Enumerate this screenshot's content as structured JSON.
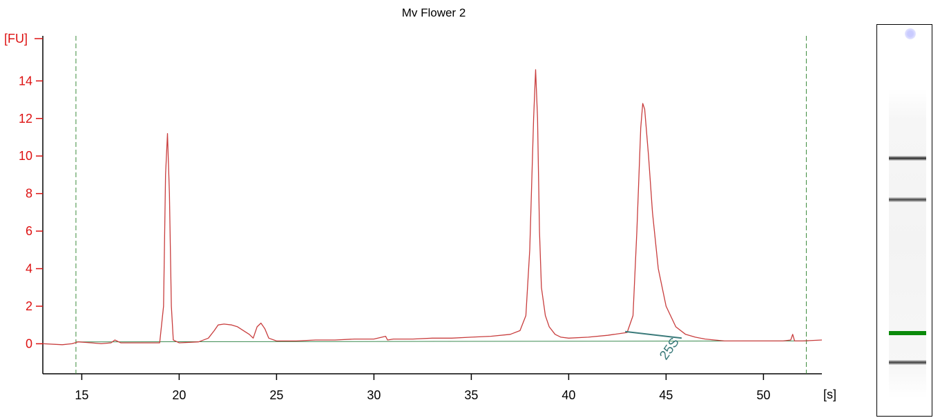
{
  "chart_data": {
    "type": "line",
    "title": "Mv Flower 2",
    "xlabel": "[s]",
    "ylabel": "[FU]",
    "xlim": [
      13,
      53
    ],
    "ylim": [
      -1.6,
      16.4
    ],
    "xticks": [
      15,
      20,
      25,
      30,
      35,
      40,
      45,
      50
    ],
    "yticks": [
      0,
      2,
      4,
      6,
      8,
      10,
      12,
      14
    ],
    "grid": false,
    "series": [
      {
        "type": "line",
        "color": "#c83c3c",
        "x": [
          13.0,
          14.0,
          14.5,
          14.8,
          15.5,
          16.0,
          16.5,
          16.7,
          17.0,
          18.0,
          19.0,
          19.2,
          19.3,
          19.4,
          19.5,
          19.6,
          19.7,
          20.0,
          21.0,
          21.5,
          21.8,
          22.0,
          22.3,
          22.7,
          23.0,
          23.3,
          23.6,
          23.8,
          24.0,
          24.2,
          24.4,
          24.6,
          25.0,
          26.0,
          27.0,
          28.0,
          29.0,
          30.0,
          30.6,
          30.7,
          31.0,
          32.0,
          33.0,
          34.0,
          35.0,
          36.0,
          37.0,
          37.5,
          37.8,
          38.0,
          38.2,
          38.3,
          38.4,
          38.5,
          38.6,
          38.8,
          39.0,
          39.3,
          39.6,
          40.0,
          41.0,
          42.0,
          43.0,
          43.3,
          43.5,
          43.7,
          43.8,
          43.9,
          44.1,
          44.3,
          44.6,
          45.0,
          45.5,
          46.0,
          46.5,
          47.0,
          48.0,
          49.0,
          50.0,
          51.0,
          51.4,
          51.5,
          51.6,
          52.0,
          53.0
        ],
        "y": [
          0.0,
          -0.05,
          0.0,
          0.1,
          0.05,
          0.0,
          0.05,
          0.2,
          0.05,
          0.05,
          0.05,
          2.0,
          9.0,
          11.2,
          8.0,
          2.0,
          0.2,
          0.05,
          0.1,
          0.3,
          0.7,
          1.0,
          1.05,
          1.0,
          0.9,
          0.7,
          0.5,
          0.3,
          0.9,
          1.1,
          0.8,
          0.3,
          0.15,
          0.15,
          0.2,
          0.2,
          0.25,
          0.25,
          0.4,
          0.2,
          0.25,
          0.25,
          0.3,
          0.3,
          0.35,
          0.4,
          0.5,
          0.7,
          1.5,
          5.0,
          12.0,
          14.6,
          12.0,
          6.0,
          3.0,
          1.5,
          0.9,
          0.5,
          0.35,
          0.3,
          0.35,
          0.45,
          0.6,
          1.5,
          6.0,
          11.5,
          12.8,
          12.5,
          10.0,
          7.0,
          4.0,
          2.0,
          0.9,
          0.5,
          0.35,
          0.25,
          0.15,
          0.15,
          0.15,
          0.15,
          0.2,
          0.5,
          0.15,
          0.15,
          0.2
        ]
      }
    ],
    "baseline": {
      "color": "#3a8a50",
      "x": [
        14.7,
        52.3
      ],
      "y": [
        0.1,
        0.15
      ]
    },
    "markers": [
      14.7,
      52.2
    ],
    "annotations": [
      {
        "text": "25S",
        "x": 45.0,
        "y": 0.2,
        "color": "#3a7a7a",
        "start_x": 42.9,
        "start_y": 0.65,
        "end_x": 45.8,
        "end_y": 0.3
      }
    ]
  },
  "gel": {
    "bands": [
      {
        "position": 0.34,
        "intensity": 0.9,
        "color": "#1e1e1e"
      },
      {
        "position": 0.444,
        "intensity": 0.8,
        "color": "#252525"
      },
      {
        "position": 0.785,
        "intensity": 1.0,
        "color": "#0a8a0a"
      },
      {
        "position": 0.86,
        "intensity": 0.85,
        "color": "#2a2a2a"
      }
    ]
  }
}
